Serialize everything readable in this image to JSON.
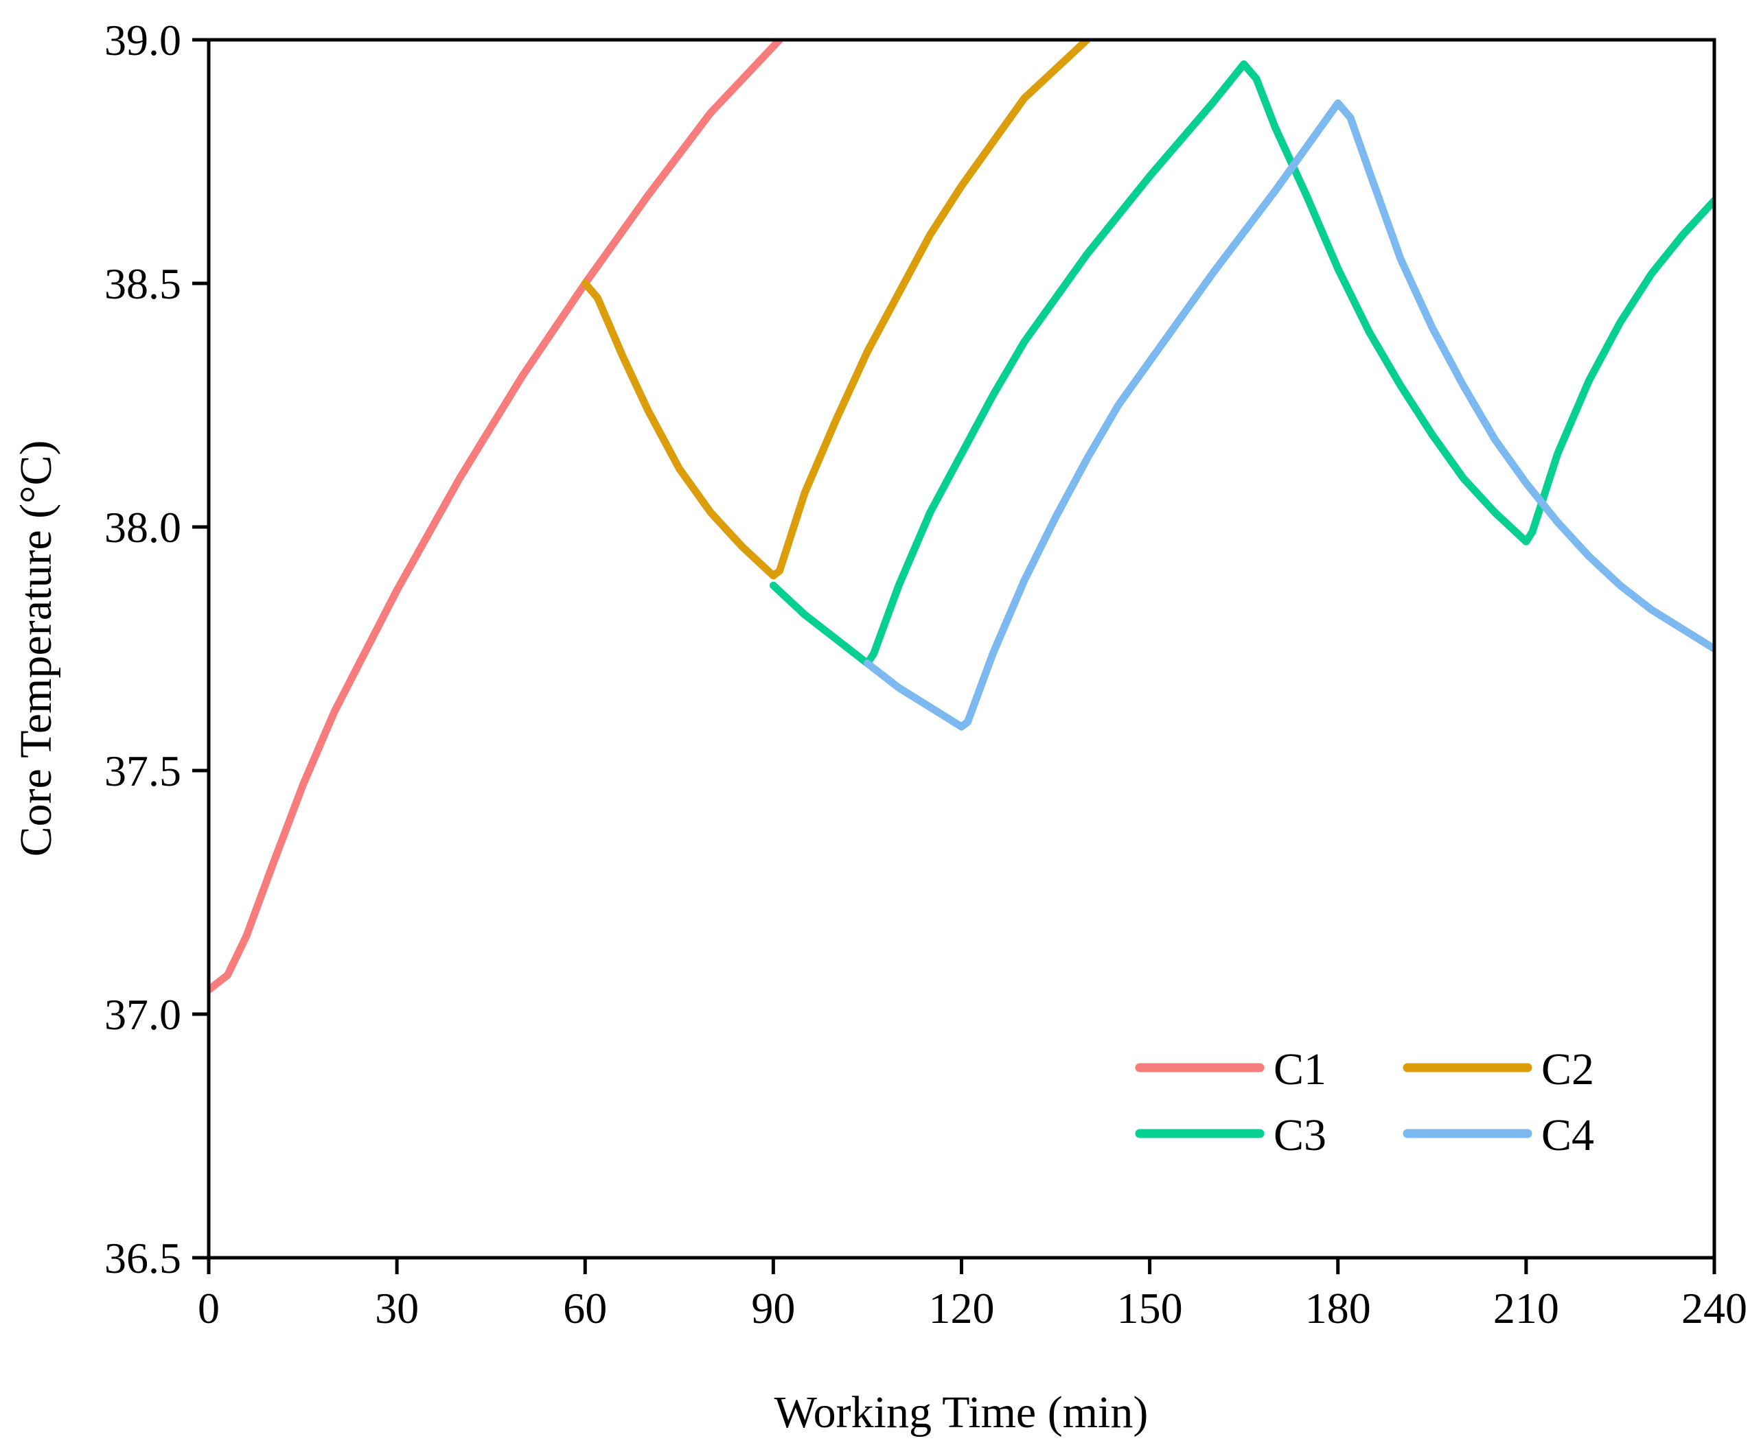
{
  "chart_data": {
    "type": "line",
    "title": "",
    "xlabel": "Working Time (min)",
    "ylabel": "Core Temperature (°C)",
    "xlim": [
      0,
      240
    ],
    "ylim": [
      36.5,
      39.0
    ],
    "xticks": [
      0,
      30,
      60,
      90,
      120,
      150,
      180,
      210,
      240
    ],
    "xtick_labels": [
      "0",
      "30",
      "60",
      "90",
      "120",
      "150",
      "180",
      "210",
      "240"
    ],
    "yticks": [
      36.5,
      37.0,
      37.5,
      38.0,
      38.5,
      39.0
    ],
    "ytick_labels": [
      "36.5",
      "37.0",
      "37.5",
      "38.0",
      "38.5",
      "39.0"
    ],
    "grid": false,
    "legend": {
      "position": "lower-right",
      "columns": 2
    },
    "series": [
      {
        "name": "C1",
        "color": "#F87C7B",
        "points": [
          [
            0,
            37.05
          ],
          [
            3,
            37.08
          ],
          [
            6,
            37.16
          ],
          [
            10,
            37.3
          ],
          [
            15,
            37.47
          ],
          [
            20,
            37.62
          ],
          [
            30,
            37.87
          ],
          [
            40,
            38.1
          ],
          [
            50,
            38.31
          ],
          [
            60,
            38.5
          ],
          [
            70,
            38.68
          ],
          [
            80,
            38.85
          ],
          [
            91,
            39.0
          ]
        ]
      },
      {
        "name": "C2",
        "color": "#DB9E0A",
        "points": [
          [
            60,
            38.5
          ],
          [
            62,
            38.47
          ],
          [
            66,
            38.35
          ],
          [
            70,
            38.24
          ],
          [
            75,
            38.12
          ],
          [
            80,
            38.03
          ],
          [
            85,
            37.96
          ],
          [
            90,
            37.9
          ],
          [
            91,
            37.91
          ],
          [
            95,
            38.07
          ],
          [
            100,
            38.22
          ],
          [
            105,
            38.36
          ],
          [
            110,
            38.48
          ],
          [
            115,
            38.6
          ],
          [
            120,
            38.7
          ],
          [
            130,
            38.88
          ],
          [
            140,
            39.0
          ]
        ]
      },
      {
        "name": "C3",
        "color": "#06CF92",
        "points": [
          [
            90,
            37.88
          ],
          [
            95,
            37.82
          ],
          [
            100,
            37.77
          ],
          [
            105,
            37.72
          ],
          [
            106,
            37.74
          ],
          [
            110,
            37.88
          ],
          [
            115,
            38.03
          ],
          [
            120,
            38.15
          ],
          [
            125,
            38.27
          ],
          [
            130,
            38.38
          ],
          [
            140,
            38.56
          ],
          [
            150,
            38.72
          ],
          [
            160,
            38.87
          ],
          [
            165,
            38.95
          ],
          [
            167,
            38.92
          ],
          [
            170,
            38.82
          ],
          [
            175,
            38.68
          ],
          [
            180,
            38.53
          ],
          [
            185,
            38.4
          ],
          [
            190,
            38.29
          ],
          [
            195,
            38.19
          ],
          [
            200,
            38.1
          ],
          [
            205,
            38.03
          ],
          [
            210,
            37.97
          ],
          [
            211,
            37.99
          ],
          [
            215,
            38.15
          ],
          [
            220,
            38.3
          ],
          [
            225,
            38.42
          ],
          [
            230,
            38.52
          ],
          [
            235,
            38.6
          ],
          [
            240,
            38.67
          ]
        ]
      },
      {
        "name": "C4",
        "color": "#7DB9F1",
        "points": [
          [
            105,
            37.72
          ],
          [
            110,
            37.67
          ],
          [
            115,
            37.63
          ],
          [
            120,
            37.59
          ],
          [
            121,
            37.6
          ],
          [
            125,
            37.74
          ],
          [
            130,
            37.89
          ],
          [
            135,
            38.02
          ],
          [
            140,
            38.14
          ],
          [
            145,
            38.25
          ],
          [
            150,
            38.34
          ],
          [
            160,
            38.52
          ],
          [
            170,
            38.69
          ],
          [
            180,
            38.87
          ],
          [
            182,
            38.84
          ],
          [
            185,
            38.73
          ],
          [
            190,
            38.55
          ],
          [
            195,
            38.41
          ],
          [
            200,
            38.29
          ],
          [
            205,
            38.18
          ],
          [
            210,
            38.09
          ],
          [
            215,
            38.01
          ],
          [
            220,
            37.94
          ],
          [
            225,
            37.88
          ],
          [
            230,
            37.83
          ],
          [
            235,
            37.79
          ],
          [
            240,
            37.75
          ]
        ]
      }
    ]
  }
}
